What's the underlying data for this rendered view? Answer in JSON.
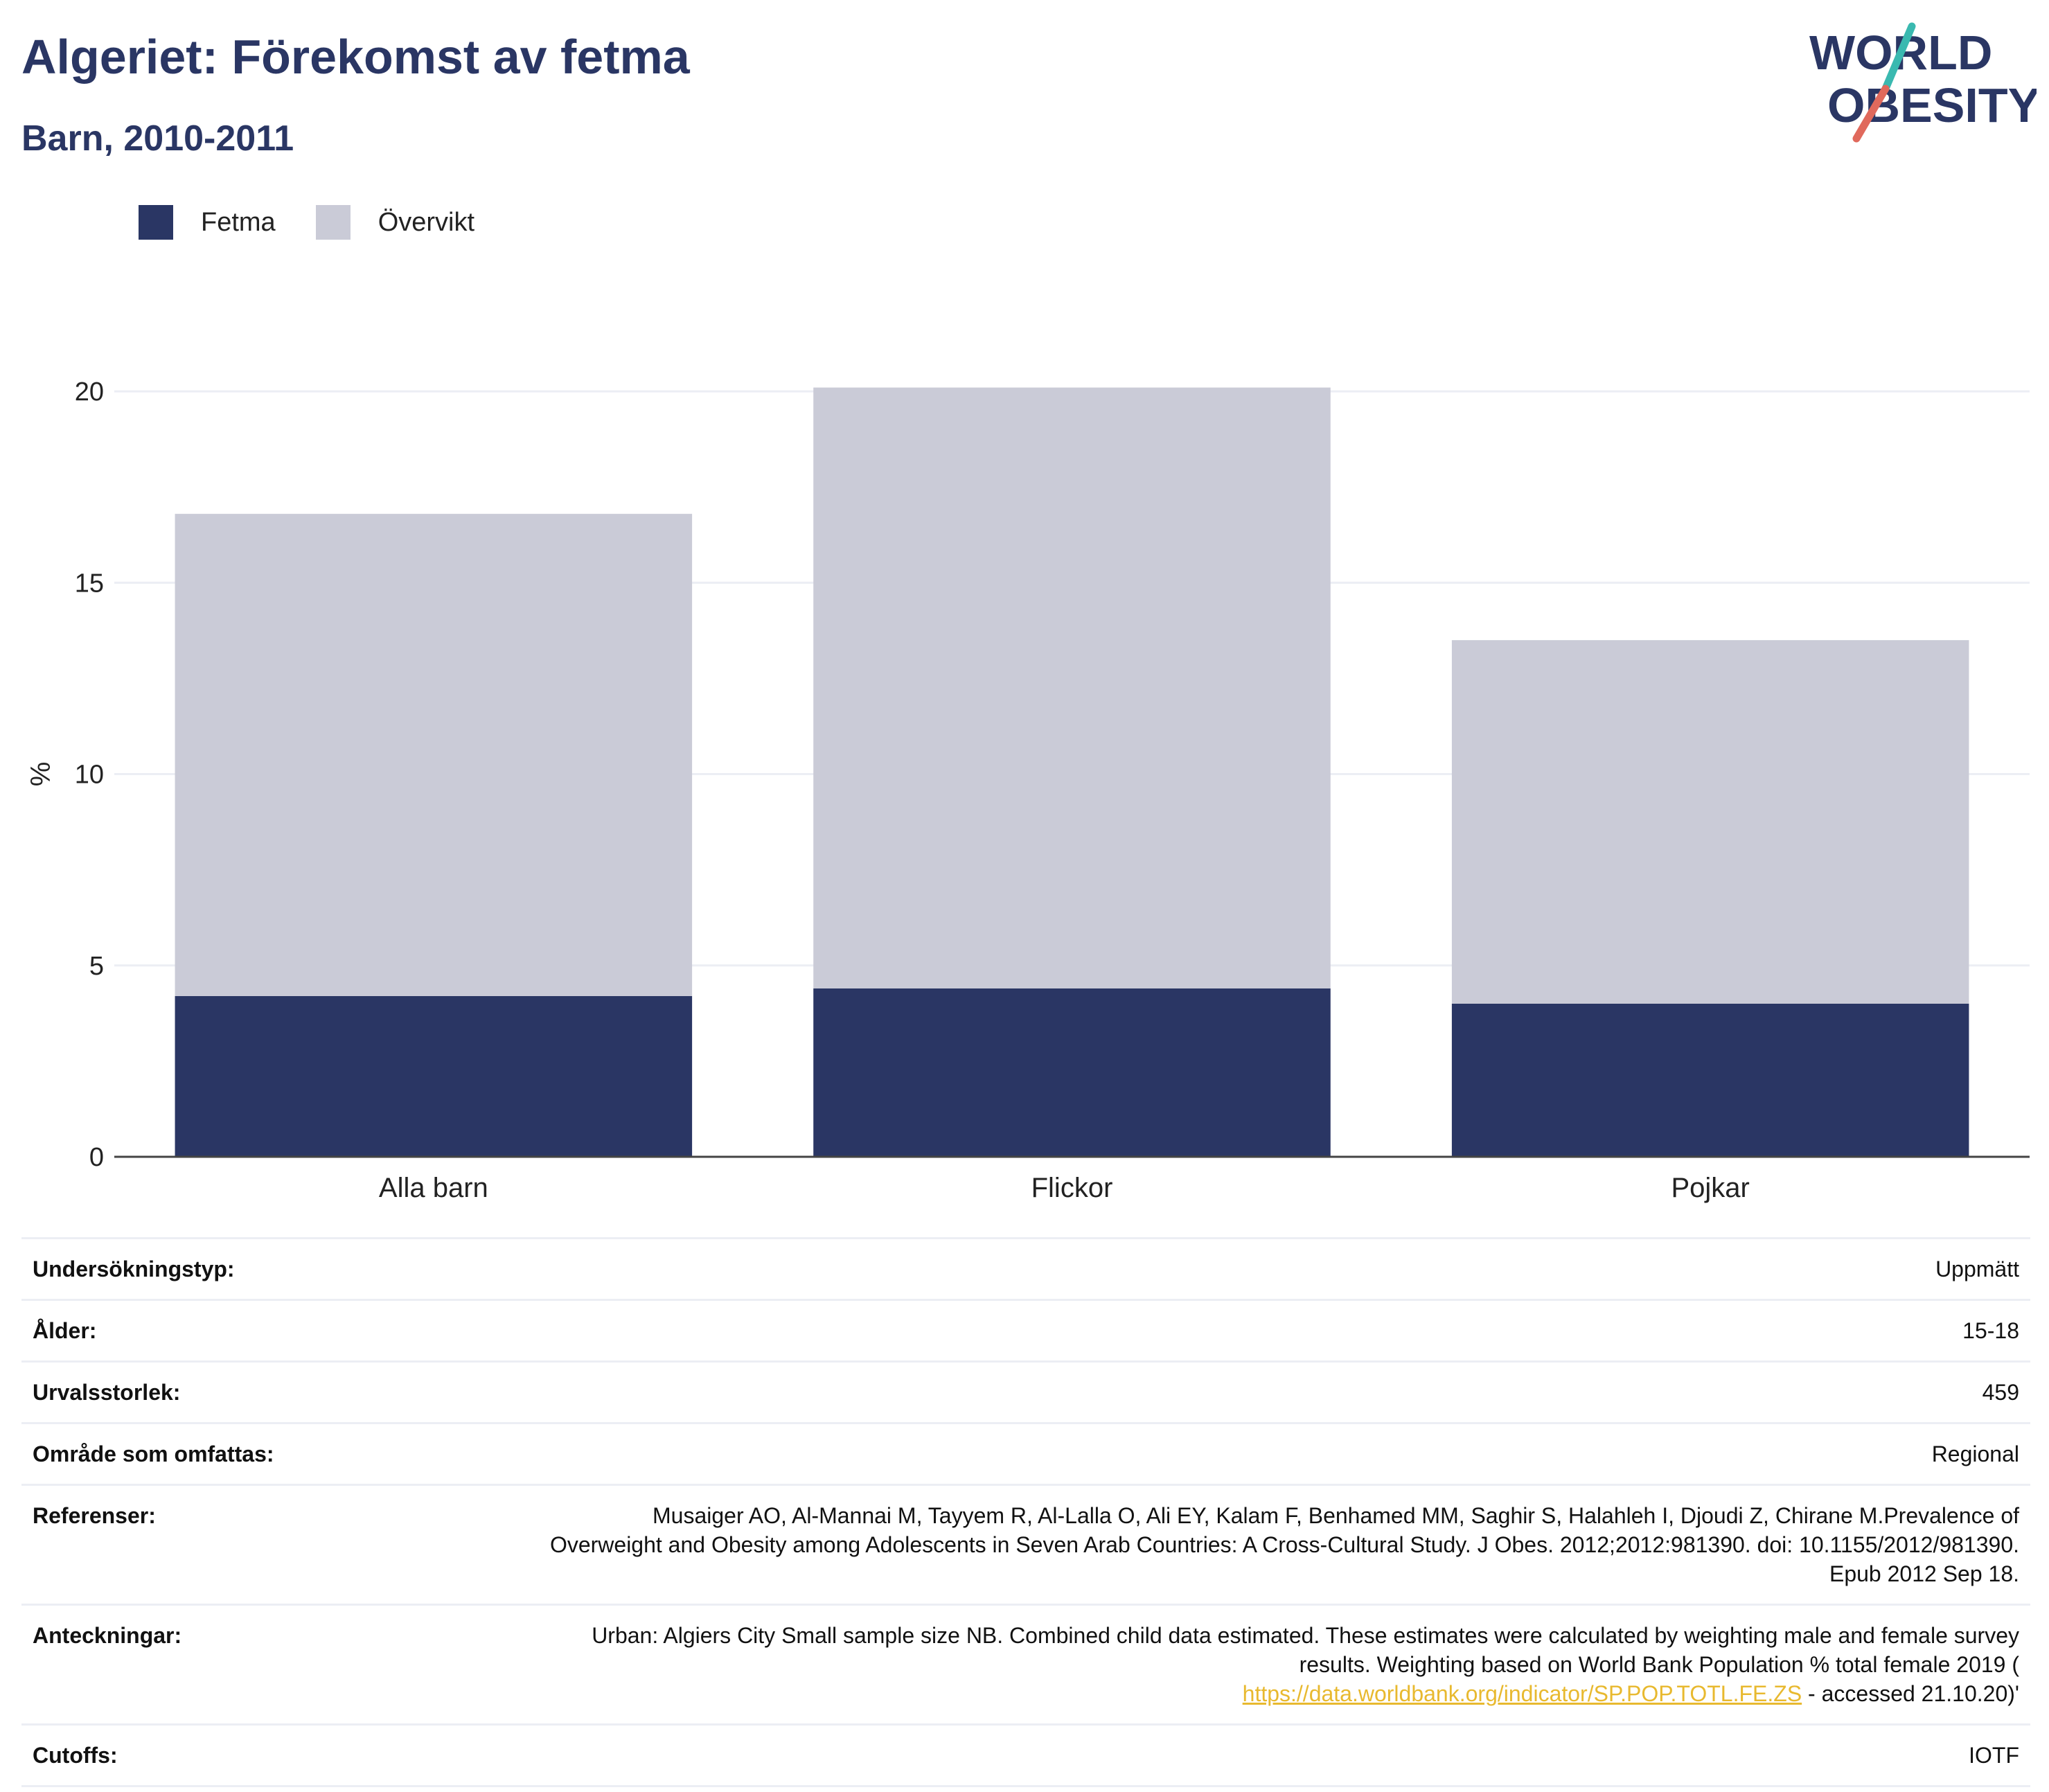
{
  "header": {
    "title": "Algeriet: Förekomst av fetma",
    "subtitle": "Barn, 2010-2011",
    "logo_line1": "WORLD",
    "logo_line2": "OBESITY"
  },
  "colors": {
    "fetma": "#2a3664",
    "overvikt": "#cacbd7",
    "title": "#2a3664",
    "logo_slash_top": "#3ab9b0",
    "logo_slash_bottom": "#e0695c",
    "link": "#e8b92f"
  },
  "legend": [
    {
      "label": "Fetma",
      "color": "#2a3664"
    },
    {
      "label": "Övervikt",
      "color": "#cacbd7"
    }
  ],
  "chart_data": {
    "type": "bar",
    "stacked": true,
    "categories": [
      "Alla barn",
      "Flickor",
      "Pojkar"
    ],
    "series": [
      {
        "name": "Fetma",
        "values": [
          4.2,
          4.4,
          4.0
        ]
      },
      {
        "name": "Övervikt",
        "values": [
          12.6,
          15.7,
          9.5
        ]
      }
    ],
    "ylabel": "%",
    "ylim": [
      0,
      20
    ],
    "yticks": [
      0,
      5,
      10,
      15,
      20
    ],
    "grid": true,
    "legend_position": "top-left"
  },
  "info": {
    "rows": [
      {
        "key": "Undersökningstyp:",
        "value": "Uppmätt"
      },
      {
        "key": "Ålder:",
        "value": "15-18"
      },
      {
        "key": "Urvalsstorlek:",
        "value": "459"
      },
      {
        "key": "Område som omfattas:",
        "value": "Regional"
      },
      {
        "key": "Referenser:",
        "value": "Musaiger AO, Al-Mannai M, Tayyem R, Al-Lalla O, Ali EY, Kalam F, Benhamed MM, Saghir S, Halahleh I, Djoudi Z, Chirane M.Prevalence of Overweight and Obesity among Adolescents in Seven Arab Countries: A Cross-Cultural Study. J Obes. 2012;2012:981390. doi: 10.1155/2012/981390. Epub 2012 Sep 18."
      }
    ],
    "notes_key": "Anteckningar:",
    "notes_text": "Urban: Algiers City Small sample size NB. Combined child data estimated. These estimates were calculated by weighting male and female survey results. Weighting based on World Bank Population % total female 2019 (",
    "notes_link": "https://data.worldbank.org/indicator/SP.POP.TOTL.FE.ZS",
    "notes_suffix": " - accessed 21.10.20)'",
    "cutoffs_key": "Cutoffs:",
    "cutoffs_value": "IOTF"
  }
}
